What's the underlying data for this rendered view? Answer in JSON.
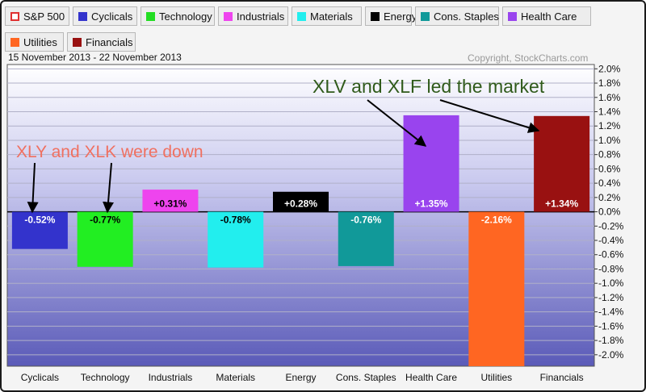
{
  "legend": {
    "items": [
      {
        "label": "S&P 500",
        "color": "#e03030",
        "hollow": true
      },
      {
        "label": "Cyclicals",
        "color": "#3333cc"
      },
      {
        "label": "Technology",
        "color": "#22dd22"
      },
      {
        "label": "Industrials",
        "color": "#ee44ee"
      },
      {
        "label": "Materials",
        "color": "#22eeee"
      },
      {
        "label": "Energy",
        "color": "#000000"
      },
      {
        "label": "Cons. Staples",
        "color": "#119999"
      },
      {
        "label": "Health Care",
        "color": "#9944ee"
      },
      {
        "label": "Utilities",
        "color": "#ff6622"
      },
      {
        "label": "Financials",
        "color": "#991111"
      }
    ]
  },
  "header": {
    "date_range": "15 November 2013 - 22 November 2013",
    "copyright": "Copyright, StockCharts.com"
  },
  "annotations": {
    "left_text": "XLY and XLK were down",
    "left_color": "#f07060",
    "right_text": "XLV and XLF led the market",
    "right_color": "#2f5a1a"
  },
  "chart_data": {
    "type": "bar",
    "categories": [
      "Cyclicals",
      "Technology",
      "Industrials",
      "Materials",
      "Energy",
      "Cons. Staples",
      "Health Care",
      "Utilities",
      "Financials"
    ],
    "values": [
      -0.52,
      -0.77,
      0.31,
      -0.78,
      0.28,
      -0.76,
      1.35,
      -2.16,
      1.34
    ],
    "labels": [
      "-0.52%",
      "-0.77%",
      "+0.31%",
      "-0.78%",
      "+0.28%",
      "-0.76%",
      "+1.35%",
      "-2.16%",
      "+1.34%"
    ],
    "colors": [
      "#3333cc",
      "#22ee22",
      "#ee44ee",
      "#22eeee",
      "#000000",
      "#119999",
      "#9944ee",
      "#ff6622",
      "#991111"
    ],
    "y_ticks": [
      "2.0%",
      "1.8%",
      "1.6%",
      "1.4%",
      "1.2%",
      "1.0%",
      "0.8%",
      "0.6%",
      "0.4%",
      "0.2%",
      "0.0%",
      "-0.2%",
      "-0.4%",
      "-0.6%",
      "-0.8%",
      "-1.0%",
      "-1.2%",
      "-1.4%",
      "-1.6%",
      "-1.8%",
      "-2.0%"
    ],
    "ylim": [
      -2.16,
      2.06
    ],
    "grid": true,
    "y_axis_side": "right"
  }
}
